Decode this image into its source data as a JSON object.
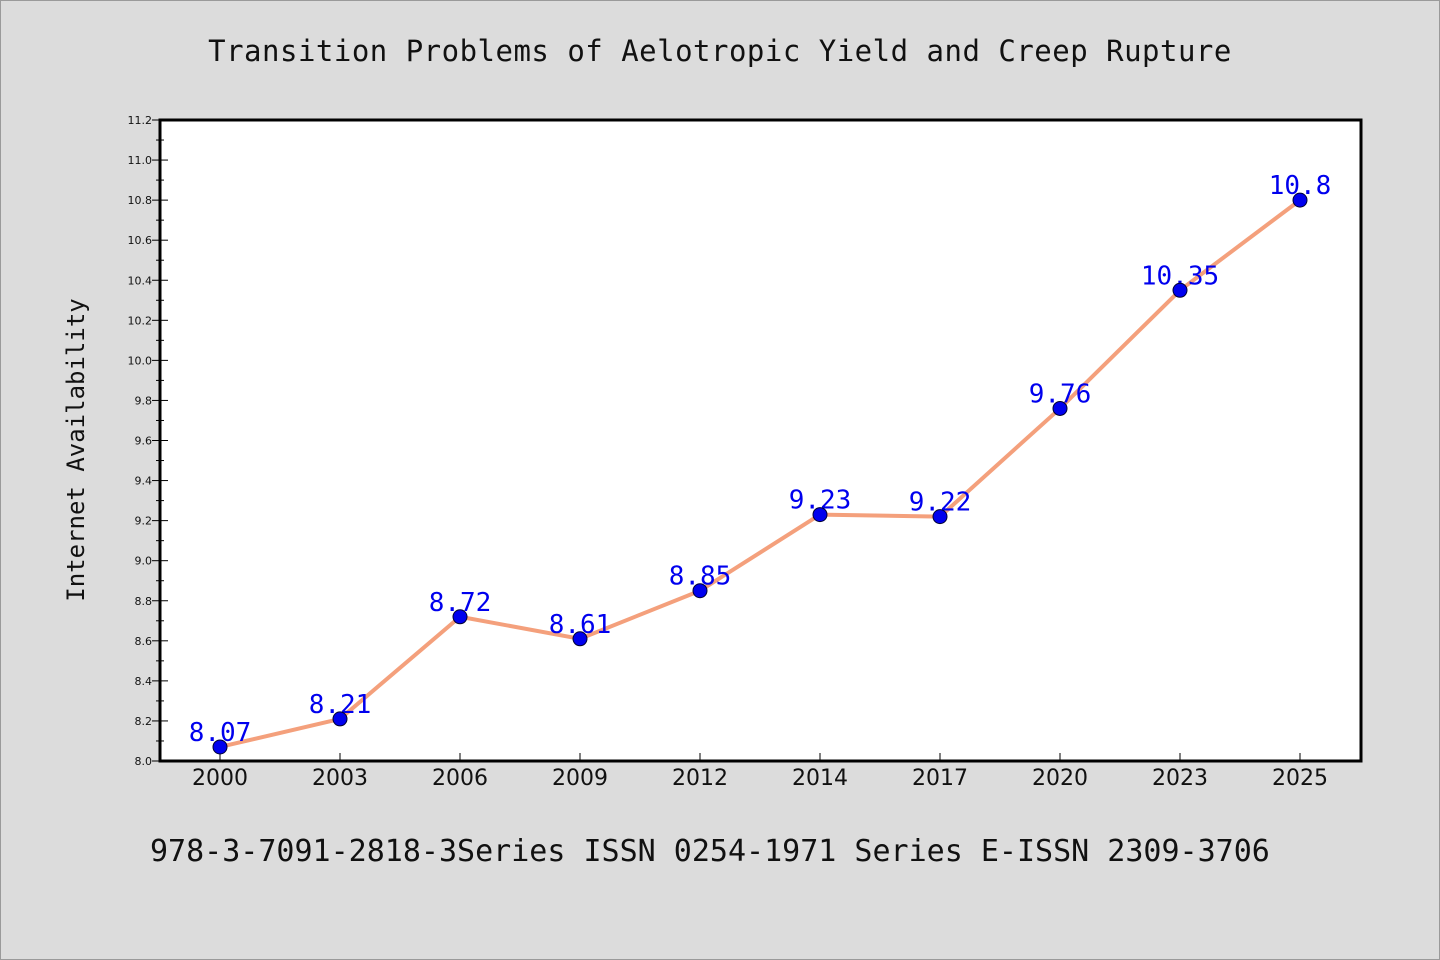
{
  "chart_data": {
    "type": "line",
    "title": "Transition Problems of Aelotropic Yield and Creep Rupture",
    "xlabel": "",
    "ylabel": "Internet Availability",
    "categories": [
      "2000",
      "2003",
      "2006",
      "2009",
      "2012",
      "2014",
      "2017",
      "2020",
      "2023",
      "2025"
    ],
    "series": [
      {
        "values": [
          8.07,
          8.21,
          8.72,
          8.61,
          8.85,
          9.23,
          9.22,
          9.76,
          10.35,
          10.8
        ],
        "labels": [
          "8.07",
          "8.21",
          "8.72",
          "8.61",
          "8.85",
          "9.23",
          "9.22",
          "9.76",
          "10.35",
          "10.8"
        ],
        "line_color": "#f4a07c",
        "marker_color": "#0000ee"
      }
    ],
    "ylim": [
      8.0,
      11.2
    ],
    "yticks": [
      "8.0",
      "8.2",
      "8.4",
      "8.6",
      "8.8",
      "9.0",
      "9.2",
      "9.4",
      "9.6",
      "9.8",
      "10.0",
      "10.2",
      "10.4",
      "10.6",
      "10.8",
      "11.0",
      "11.2"
    ],
    "grid": false,
    "legend": "none"
  },
  "footer": "978-3-7091-2818-3Series ISSN 0254-1971 Series E-ISSN 2309-3706"
}
